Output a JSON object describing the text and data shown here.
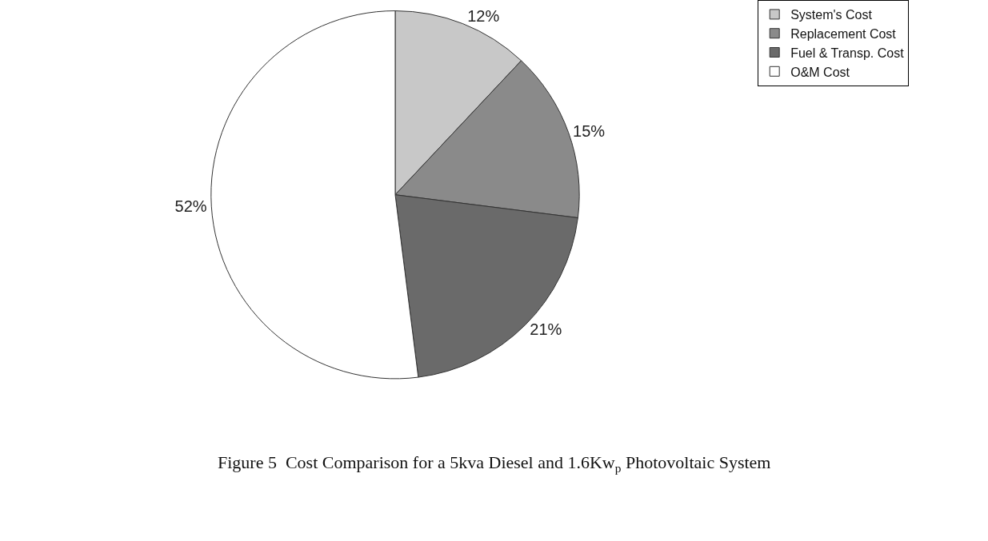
{
  "chart_data": {
    "type": "pie",
    "categories": [
      "System's Cost",
      "Replacement Cost",
      "Fuel & Transp. Cost",
      "O&M Cost"
    ],
    "values": [
      12,
      15,
      21,
      52
    ],
    "value_labels": [
      "12%",
      "15%",
      "21%",
      "52%"
    ],
    "colors": [
      "#c8c8c8",
      "#8a8a8a",
      "#6a6a6a",
      "#ffffff"
    ],
    "legend": "top right",
    "annotations": [
      "Figure 5  Cost Comparison for a 5kva Diesel and 1.6Kw$_{p}$ Photovoltaic System"
    ]
  }
}
